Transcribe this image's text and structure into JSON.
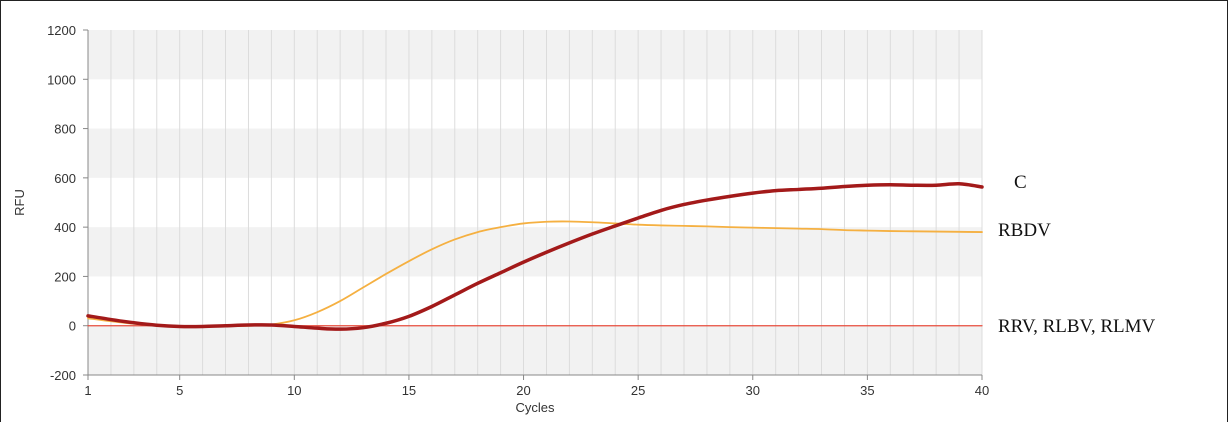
{
  "chart_data": {
    "type": "line",
    "xlabel": "Cycles",
    "ylabel": "RFU",
    "xlim": [
      1,
      40
    ],
    "ylim": [
      -200,
      1200
    ],
    "x_ticks": [
      1,
      5,
      10,
      15,
      20,
      25,
      30,
      35,
      40
    ],
    "y_ticks": [
      -200,
      0,
      200,
      400,
      600,
      800,
      1000,
      1200
    ],
    "grid": true,
    "series": [
      {
        "name": "C",
        "color": "#a31a1a",
        "x": [
          1,
          2,
          3,
          4,
          5,
          6,
          7,
          8,
          9,
          10,
          11,
          12,
          13,
          14,
          15,
          16,
          17,
          18,
          19,
          20,
          21,
          22,
          23,
          24,
          25,
          26,
          27,
          28,
          29,
          30,
          31,
          32,
          33,
          34,
          35,
          36,
          37,
          38,
          39,
          40
        ],
        "values": [
          40,
          25,
          12,
          2,
          -3,
          -3,
          0,
          3,
          3,
          -3,
          -10,
          -14,
          -8,
          10,
          38,
          78,
          125,
          172,
          215,
          258,
          298,
          336,
          372,
          405,
          437,
          468,
          492,
          510,
          525,
          538,
          548,
          553,
          558,
          565,
          570,
          572,
          570,
          570,
          576,
          563
        ]
      },
      {
        "name": "RBDV",
        "color": "#f5b041",
        "x": [
          1,
          2,
          3,
          4,
          5,
          6,
          7,
          8,
          9,
          10,
          11,
          12,
          13,
          14,
          15,
          16,
          17,
          18,
          19,
          20,
          21,
          22,
          23,
          24,
          25,
          26,
          27,
          28,
          29,
          30,
          31,
          32,
          33,
          34,
          35,
          36,
          37,
          38,
          39,
          40
        ],
        "values": [
          30,
          18,
          8,
          0,
          -3,
          -3,
          -2,
          0,
          5,
          22,
          55,
          100,
          155,
          210,
          262,
          310,
          350,
          380,
          400,
          415,
          422,
          423,
          420,
          415,
          410,
          407,
          405,
          403,
          400,
          398,
          396,
          394,
          392,
          388,
          386,
          384,
          383,
          382,
          381,
          380
        ]
      },
      {
        "name": "RRV, RLBV, RLMV",
        "color": "#e74c3c",
        "x": [
          1,
          40
        ],
        "values": [
          0,
          0
        ]
      }
    ]
  }
}
